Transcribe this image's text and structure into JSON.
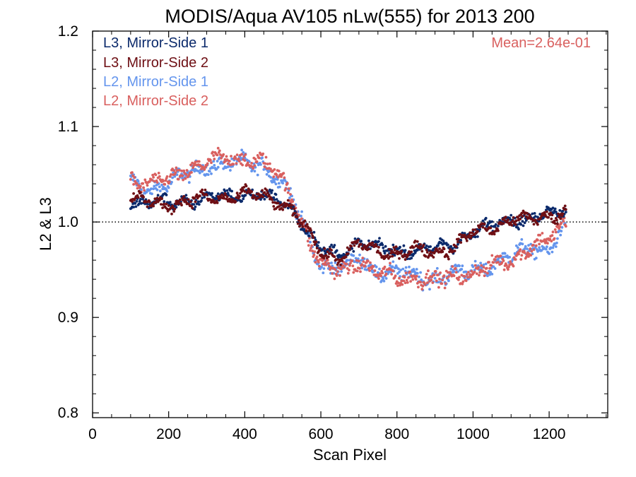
{
  "chart_data": {
    "type": "scatter",
    "title": "MODIS/Aqua AV105 nLw(555) for 2013 200",
    "xlabel": "Scan Pixel",
    "ylabel": "L2 & L3",
    "xlim": [
      0,
      1354
    ],
    "ylim": [
      0.795,
      1.2
    ],
    "xticks": [
      0,
      200,
      400,
      600,
      800,
      1000,
      1200
    ],
    "xtick_labels": [
      "0",
      "200",
      "400",
      "600",
      "800",
      "1000",
      "1200"
    ],
    "yticks": [
      0.8,
      0.9,
      1.0,
      1.1,
      1.2
    ],
    "ytick_labels": [
      "0.8",
      "0.9",
      "1.0",
      "1.1",
      "1.2"
    ],
    "reference_line": 1.0,
    "annotation": "Mean=2.64e-01",
    "annotation_color": "#d9605f",
    "legend_position": "top-left",
    "series": [
      {
        "name": "L3, Mirror-Side 1",
        "color": "#0b2a6b",
        "x": [
          100,
          150,
          200,
          250,
          300,
          350,
          400,
          450,
          500,
          530,
          560,
          600,
          650,
          700,
          750,
          800,
          850,
          900,
          950,
          1000,
          1050,
          1100,
          1150,
          1200,
          1245
        ],
        "y": [
          1.022,
          1.02,
          1.02,
          1.023,
          1.025,
          1.027,
          1.03,
          1.027,
          1.02,
          1.012,
          0.995,
          0.97,
          0.965,
          0.98,
          0.972,
          0.97,
          0.972,
          0.97,
          0.978,
          0.99,
          0.995,
          1.005,
          1.003,
          1.008,
          1.015
        ],
        "noise": 0.005
      },
      {
        "name": "L3, Mirror-Side 2",
        "color": "#6e0f14",
        "x": [
          100,
          150,
          200,
          250,
          300,
          350,
          400,
          450,
          500,
          530,
          560,
          600,
          650,
          700,
          750,
          800,
          850,
          900,
          950,
          1000,
          1050,
          1100,
          1150,
          1200,
          1245
        ],
        "y": [
          1.024,
          1.02,
          1.019,
          1.022,
          1.024,
          1.026,
          1.029,
          1.026,
          1.02,
          1.01,
          0.993,
          0.968,
          0.963,
          0.976,
          0.969,
          0.968,
          0.97,
          0.968,
          0.975,
          0.988,
          0.994,
          1.004,
          1.001,
          1.006,
          1.014
        ],
        "noise": 0.005
      },
      {
        "name": "L2, Mirror-Side 1",
        "color": "#6495ed",
        "x": [
          100,
          150,
          200,
          250,
          300,
          350,
          400,
          450,
          500,
          530,
          560,
          600,
          650,
          700,
          750,
          800,
          850,
          900,
          950,
          1000,
          1050,
          1100,
          1150,
          1200,
          1245
        ],
        "y": [
          1.04,
          1.035,
          1.04,
          1.05,
          1.06,
          1.06,
          1.062,
          1.06,
          1.04,
          1.02,
          0.99,
          0.955,
          0.95,
          0.963,
          0.948,
          0.945,
          0.945,
          0.94,
          0.945,
          0.95,
          0.955,
          0.963,
          0.975,
          0.97,
          0.998
        ],
        "noise": 0.007
      },
      {
        "name": "L2, Mirror-Side 2",
        "color": "#d9605f",
        "x": [
          100,
          150,
          200,
          250,
          300,
          350,
          400,
          450,
          500,
          530,
          560,
          600,
          650,
          700,
          750,
          800,
          850,
          900,
          950,
          1000,
          1050,
          1100,
          1150,
          1200,
          1245
        ],
        "y": [
          1.045,
          1.04,
          1.043,
          1.055,
          1.063,
          1.065,
          1.067,
          1.063,
          1.043,
          1.022,
          0.99,
          0.953,
          0.948,
          0.96,
          0.945,
          0.942,
          0.943,
          0.938,
          0.943,
          0.948,
          0.953,
          0.96,
          0.975,
          0.98,
          1.0
        ],
        "noise": 0.007
      }
    ]
  }
}
